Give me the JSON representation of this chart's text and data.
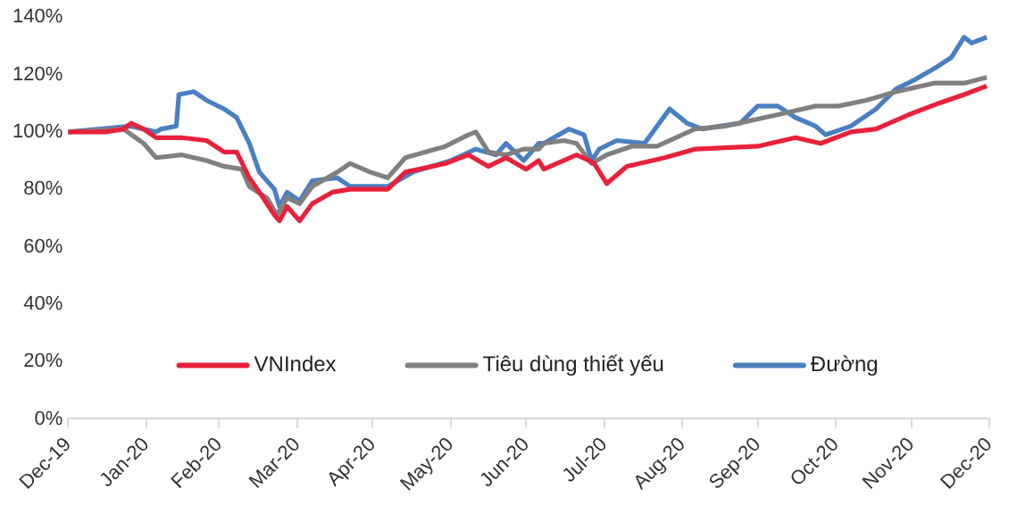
{
  "chart_data": {
    "type": "line",
    "xlim": [
      "2019-12-31",
      "2020-12-31"
    ],
    "xticks": [
      {
        "value": "2019-12-31",
        "label": "Dec-19"
      },
      {
        "value": "2020-01-31",
        "label": "Jan-20"
      },
      {
        "value": "2020-02-29",
        "label": "Feb-20"
      },
      {
        "value": "2020-03-31",
        "label": "Mar-20"
      },
      {
        "value": "2020-04-30",
        "label": "Apr-20"
      },
      {
        "value": "2020-05-31",
        "label": "May-20"
      },
      {
        "value": "2020-06-30",
        "label": "Jun-20"
      },
      {
        "value": "2020-07-31",
        "label": "Jul-20"
      },
      {
        "value": "2020-08-31",
        "label": "Aug-20"
      },
      {
        "value": "2020-09-30",
        "label": "Sep-20"
      },
      {
        "value": "2020-10-31",
        "label": "Oct-20"
      },
      {
        "value": "2020-11-30",
        "label": "Nov-20"
      },
      {
        "value": "2020-12-31",
        "label": "Dec-20"
      }
    ],
    "ylim": [
      0,
      140
    ],
    "yticks": [
      {
        "value": 0,
        "label": "0%"
      },
      {
        "value": 20,
        "label": "20%"
      },
      {
        "value": 40,
        "label": "40%"
      },
      {
        "value": 60,
        "label": "60%"
      },
      {
        "value": 80,
        "label": "80%"
      },
      {
        "value": 100,
        "label": "100%"
      },
      {
        "value": 120,
        "label": "120%"
      },
      {
        "value": 140,
        "label": "140%"
      }
    ],
    "grid": false,
    "legend": "bottom",
    "marker": "none",
    "line_style": "solid",
    "series": [
      {
        "name": "VNIndex",
        "color": "#e8213a",
        "x": [
          "2019-12-31",
          "2020-01-15",
          "2020-01-22",
          "2020-01-25",
          "2020-01-30",
          "2020-02-04",
          "2020-02-14",
          "2020-02-24",
          "2020-03-02",
          "2020-03-07",
          "2020-03-12",
          "2020-03-16",
          "2020-03-22",
          "2020-03-24",
          "2020-03-27",
          "2020-04-01",
          "2020-04-06",
          "2020-04-14",
          "2020-04-21",
          "2020-05-06",
          "2020-05-13",
          "2020-05-29",
          "2020-06-07",
          "2020-06-15",
          "2020-06-22",
          "2020-06-30",
          "2020-07-05",
          "2020-07-07",
          "2020-07-20",
          "2020-07-25",
          "2020-07-27",
          "2020-08-01",
          "2020-08-09",
          "2020-08-24",
          "2020-09-05",
          "2020-09-30",
          "2020-10-15",
          "2020-10-25",
          "2020-11-06",
          "2020-11-16",
          "2020-11-29",
          "2020-12-11",
          "2020-12-21",
          "2020-12-30"
        ],
        "values": [
          100,
          100,
          101,
          103,
          101,
          98,
          98,
          97,
          93,
          93,
          84,
          79,
          71,
          69,
          74,
          69,
          75,
          79,
          80,
          80,
          86,
          89,
          92,
          88,
          91,
          87,
          90,
          87,
          92,
          90,
          89,
          82,
          88,
          91,
          94,
          95,
          98,
          96,
          100,
          101,
          106,
          110,
          113,
          116
        ]
      },
      {
        "name": "Tiêu dùng thiết yếu",
        "color": "#808080",
        "x": [
          "2019-12-31",
          "2020-01-22",
          "2020-01-30",
          "2020-02-04",
          "2020-02-14",
          "2020-02-24",
          "2020-03-02",
          "2020-03-09",
          "2020-03-12",
          "2020-03-19",
          "2020-03-23",
          "2020-03-27",
          "2020-04-01",
          "2020-04-06",
          "2020-04-16",
          "2020-04-21",
          "2020-04-29",
          "2020-05-06",
          "2020-05-13",
          "2020-05-29",
          "2020-06-07",
          "2020-06-10",
          "2020-06-15",
          "2020-06-22",
          "2020-06-29",
          "2020-07-05",
          "2020-07-07",
          "2020-07-15",
          "2020-07-20",
          "2020-07-26",
          "2020-08-01",
          "2020-08-11",
          "2020-08-21",
          "2020-09-05",
          "2020-09-17",
          "2020-10-08",
          "2020-10-23",
          "2020-11-01",
          "2020-11-12",
          "2020-11-24",
          "2020-12-09",
          "2020-12-21",
          "2020-12-30"
        ],
        "values": [
          100,
          101,
          96,
          91,
          92,
          90,
          88,
          87,
          81,
          77,
          71,
          77,
          75,
          81,
          86,
          89,
          86,
          84,
          91,
          95,
          99,
          100,
          93,
          92,
          94,
          94,
          96,
          97,
          96,
          89,
          92,
          95,
          95,
          101,
          102,
          106,
          109,
          109,
          111,
          114,
          117,
          117,
          119
        ]
      },
      {
        "name": "Đường",
        "color": "#4a7fc1",
        "x": [
          "2019-12-31",
          "2020-01-25",
          "2020-02-04",
          "2020-02-06",
          "2020-02-12",
          "2020-02-13",
          "2020-02-19",
          "2020-02-24",
          "2020-03-02",
          "2020-03-07",
          "2020-03-12",
          "2020-03-16",
          "2020-03-22",
          "2020-03-24",
          "2020-03-27",
          "2020-04-01",
          "2020-04-06",
          "2020-04-16",
          "2020-04-21",
          "2020-05-06",
          "2020-05-16",
          "2020-05-31",
          "2020-06-10",
          "2020-06-18",
          "2020-06-22",
          "2020-06-29",
          "2020-07-05",
          "2020-07-07",
          "2020-07-17",
          "2020-07-23",
          "2020-07-26",
          "2020-07-29",
          "2020-08-05",
          "2020-08-16",
          "2020-08-26",
          "2020-09-02",
          "2020-09-08",
          "2020-09-15",
          "2020-09-23",
          "2020-09-30",
          "2020-10-08",
          "2020-10-15",
          "2020-10-23",
          "2020-10-27",
          "2020-11-06",
          "2020-11-16",
          "2020-11-24",
          "2020-12-01",
          "2020-12-09",
          "2020-12-16",
          "2020-12-21",
          "2020-12-24",
          "2020-12-30"
        ],
        "values": [
          100,
          102,
          100,
          101,
          102,
          113,
          114,
          111,
          108,
          105,
          96,
          86,
          80,
          74,
          79,
          76,
          83,
          84,
          81,
          81,
          86,
          90,
          94,
          92,
          96,
          90,
          96,
          96,
          101,
          99,
          90,
          94,
          97,
          96,
          108,
          103,
          101,
          102,
          103,
          109,
          109,
          105,
          102,
          99,
          102,
          108,
          115,
          118,
          122,
          126,
          133,
          131,
          133
        ]
      }
    ]
  }
}
